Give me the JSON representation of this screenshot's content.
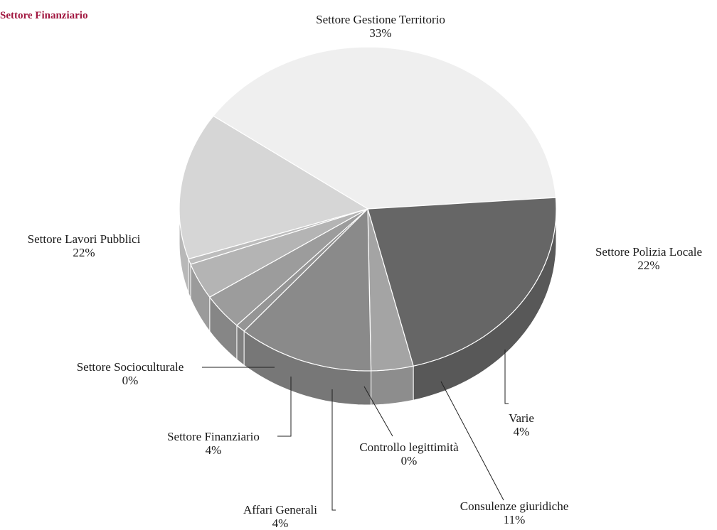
{
  "header_fragment": "Settore Finanziario",
  "chart_data": {
    "type": "pie",
    "style": "3d-pie-grayscale",
    "legend": "none",
    "slices": [
      {
        "label": "Settore Gestione Territorio",
        "pct_label": "33%",
        "value": 33,
        "color": "#efefef"
      },
      {
        "label": "Settore Polizia Locale",
        "pct_label": "22%",
        "value": 22,
        "color": "#666666"
      },
      {
        "label": "Varie",
        "pct_label": "4%",
        "value": 4,
        "color": "#a4a4a4"
      },
      {
        "label": "Consulenze giuridiche",
        "pct_label": "11%",
        "value": 11,
        "color": "#8a8a8a"
      },
      {
        "label": "Controllo legittimità",
        "pct_label": "0%",
        "value": 0,
        "color": "#959595"
      },
      {
        "label": "Affari Generali",
        "pct_label": "4%",
        "value": 4,
        "color": "#9c9c9c"
      },
      {
        "label": "Settore Finanziario",
        "pct_label": "4%",
        "value": 4,
        "color": "#b4b4b4"
      },
      {
        "label": "Settore Socioculturale",
        "pct_label": "0%",
        "value": 0,
        "color": "#bdbdbd"
      },
      {
        "label": "Settore Lavori Pubblici",
        "pct_label": "22%",
        "value": 22,
        "color": "#d6d6d6"
      }
    ]
  }
}
